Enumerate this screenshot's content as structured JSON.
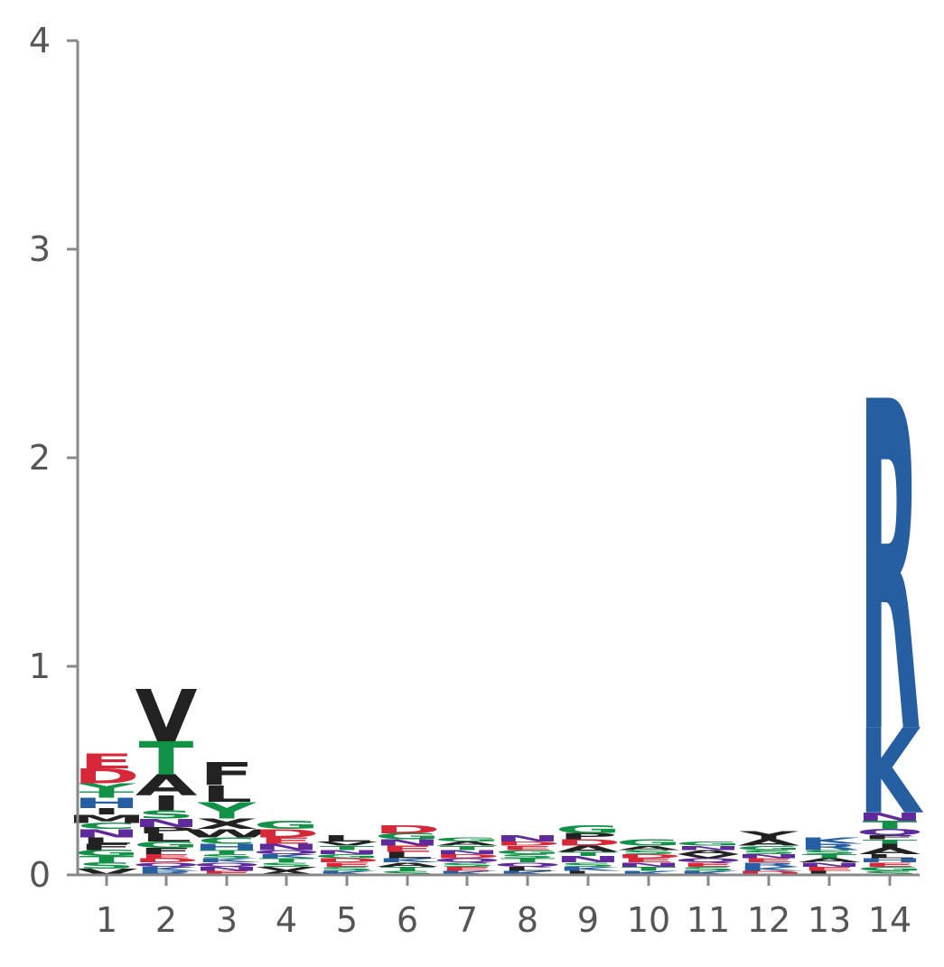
{
  "chart_data": {
    "type": "sequence-logo",
    "title": "",
    "xlabel": "",
    "ylabel": "",
    "ylim": [
      0,
      4
    ],
    "y_ticks": [
      "0",
      "1",
      "2",
      "3",
      "4"
    ],
    "positions": [
      "1",
      "2",
      "3",
      "4",
      "5",
      "6",
      "7",
      "8",
      "9",
      "10",
      "11",
      "12",
      "13",
      "14"
    ],
    "colors": {
      "acidic": "#d62839",
      "polar": "#119247",
      "basic": "#255ea1",
      "hydrophobic": "#222222",
      "amide": "#5e2a9c"
    },
    "stacks": [
      {
        "position": "1",
        "letters": [
          {
            "letter": "V",
            "height": 0.03,
            "color": "#222222"
          },
          {
            "letter": "S",
            "height": 0.03,
            "color": "#119247"
          },
          {
            "letter": "T",
            "height": 0.03,
            "color": "#119247"
          },
          {
            "letter": "G",
            "height": 0.03,
            "color": "#119247"
          },
          {
            "letter": "F",
            "height": 0.03,
            "color": "#222222"
          },
          {
            "letter": "L",
            "height": 0.03,
            "color": "#222222"
          },
          {
            "letter": "N",
            "height": 0.04,
            "color": "#5e2a9c"
          },
          {
            "letter": "C",
            "height": 0.03,
            "color": "#119247"
          },
          {
            "letter": "M",
            "height": 0.04,
            "color": "#222222"
          },
          {
            "letter": "I",
            "height": 0.03,
            "color": "#222222"
          },
          {
            "letter": "H",
            "height": 0.05,
            "color": "#255ea1"
          },
          {
            "letter": "T",
            "height": 0.03,
            "color": "#119247"
          },
          {
            "letter": "Y",
            "height": 0.04,
            "color": "#119247"
          },
          {
            "letter": "D",
            "height": 0.07,
            "color": "#d62839"
          },
          {
            "letter": "E",
            "height": 0.07,
            "color": "#d62839"
          }
        ]
      },
      {
        "position": "2",
        "letters": [
          {
            "letter": "R",
            "height": 0.02,
            "color": "#255ea1"
          },
          {
            "letter": "K",
            "height": 0.02,
            "color": "#255ea1"
          },
          {
            "letter": "Q",
            "height": 0.02,
            "color": "#5e2a9c"
          },
          {
            "letter": "D",
            "height": 0.02,
            "color": "#d62839"
          },
          {
            "letter": "E",
            "height": 0.02,
            "color": "#d62839"
          },
          {
            "letter": "F",
            "height": 0.03,
            "color": "#222222"
          },
          {
            "letter": "G",
            "height": 0.03,
            "color": "#119247"
          },
          {
            "letter": "L",
            "height": 0.04,
            "color": "#222222"
          },
          {
            "letter": "P",
            "height": 0.03,
            "color": "#222222"
          },
          {
            "letter": "N",
            "height": 0.04,
            "color": "#5e2a9c"
          },
          {
            "letter": "S",
            "height": 0.04,
            "color": "#119247"
          },
          {
            "letter": "I",
            "height": 0.07,
            "color": "#222222"
          },
          {
            "letter": "A",
            "height": 0.1,
            "color": "#222222"
          },
          {
            "letter": "T",
            "height": 0.16,
            "color": "#119247"
          },
          {
            "letter": "V",
            "height": 0.25,
            "color": "#222222"
          }
        ]
      },
      {
        "position": "3",
        "letters": [
          {
            "letter": "E",
            "height": 0.02,
            "color": "#d62839"
          },
          {
            "letter": "N",
            "height": 0.02,
            "color": "#5e2a9c"
          },
          {
            "letter": "Q",
            "height": 0.02,
            "color": "#5e2a9c"
          },
          {
            "letter": "K",
            "height": 0.02,
            "color": "#255ea1"
          },
          {
            "letter": "S",
            "height": 0.02,
            "color": "#119247"
          },
          {
            "letter": "T",
            "height": 0.02,
            "color": "#119247"
          },
          {
            "letter": "H",
            "height": 0.03,
            "color": "#255ea1"
          },
          {
            "letter": "C",
            "height": 0.03,
            "color": "#119247"
          },
          {
            "letter": "W",
            "height": 0.04,
            "color": "#222222"
          },
          {
            "letter": "X",
            "height": 0.05,
            "color": "#222222"
          },
          {
            "letter": "Y",
            "height": 0.08,
            "color": "#119247"
          },
          {
            "letter": "L",
            "height": 0.08,
            "color": "#222222"
          },
          {
            "letter": "F",
            "height": 0.11,
            "color": "#222222"
          }
        ]
      },
      {
        "position": "4",
        "letters": [
          {
            "letter": "A",
            "height": 0.02,
            "color": "#222222"
          },
          {
            "letter": "V",
            "height": 0.02,
            "color": "#222222"
          },
          {
            "letter": "S",
            "height": 0.02,
            "color": "#119247"
          },
          {
            "letter": "T",
            "height": 0.02,
            "color": "#119247"
          },
          {
            "letter": "K",
            "height": 0.02,
            "color": "#255ea1"
          },
          {
            "letter": "Q",
            "height": 0.02,
            "color": "#5e2a9c"
          },
          {
            "letter": "N",
            "height": 0.03,
            "color": "#5e2a9c"
          },
          {
            "letter": "E",
            "height": 0.03,
            "color": "#d62839"
          },
          {
            "letter": "D",
            "height": 0.04,
            "color": "#d62839"
          },
          {
            "letter": "G",
            "height": 0.04,
            "color": "#119247"
          }
        ]
      },
      {
        "position": "5",
        "letters": [
          {
            "letter": "K",
            "height": 0.02,
            "color": "#255ea1"
          },
          {
            "letter": "S",
            "height": 0.02,
            "color": "#119247"
          },
          {
            "letter": "E",
            "height": 0.02,
            "color": "#d62839"
          },
          {
            "letter": "D",
            "height": 0.02,
            "color": "#d62839"
          },
          {
            "letter": "G",
            "height": 0.02,
            "color": "#119247"
          },
          {
            "letter": "N",
            "height": 0.02,
            "color": "#5e2a9c"
          },
          {
            "letter": "T",
            "height": 0.02,
            "color": "#119247"
          },
          {
            "letter": "V",
            "height": 0.02,
            "color": "#222222"
          },
          {
            "letter": "L",
            "height": 0.03,
            "color": "#222222"
          }
        ]
      },
      {
        "position": "6",
        "letters": [
          {
            "letter": "S",
            "height": 0.02,
            "color": "#119247"
          },
          {
            "letter": "T",
            "height": 0.02,
            "color": "#119247"
          },
          {
            "letter": "A",
            "height": 0.02,
            "color": "#222222"
          },
          {
            "letter": "K",
            "height": 0.02,
            "color": "#255ea1"
          },
          {
            "letter": "L",
            "height": 0.03,
            "color": "#222222"
          },
          {
            "letter": "E",
            "height": 0.03,
            "color": "#d62839"
          },
          {
            "letter": "N",
            "height": 0.03,
            "color": "#5e2a9c"
          },
          {
            "letter": "G",
            "height": 0.03,
            "color": "#119247"
          },
          {
            "letter": "D",
            "height": 0.04,
            "color": "#d62839"
          }
        ]
      },
      {
        "position": "7",
        "letters": [
          {
            "letter": "K",
            "height": 0.02,
            "color": "#255ea1"
          },
          {
            "letter": "E",
            "height": 0.02,
            "color": "#d62839"
          },
          {
            "letter": "S",
            "height": 0.02,
            "color": "#119247"
          },
          {
            "letter": "Q",
            "height": 0.02,
            "color": "#5e2a9c"
          },
          {
            "letter": "D",
            "height": 0.02,
            "color": "#d62839"
          },
          {
            "letter": "N",
            "height": 0.02,
            "color": "#5e2a9c"
          },
          {
            "letter": "T",
            "height": 0.02,
            "color": "#119247"
          },
          {
            "letter": "A",
            "height": 0.02,
            "color": "#222222"
          },
          {
            "letter": "G",
            "height": 0.02,
            "color": "#119247"
          }
        ]
      },
      {
        "position": "8",
        "letters": [
          {
            "letter": "K",
            "height": 0.02,
            "color": "#255ea1"
          },
          {
            "letter": "L",
            "height": 0.02,
            "color": "#222222"
          },
          {
            "letter": "Q",
            "height": 0.02,
            "color": "#5e2a9c"
          },
          {
            "letter": "T",
            "height": 0.02,
            "color": "#119247"
          },
          {
            "letter": "S",
            "height": 0.02,
            "color": "#119247"
          },
          {
            "letter": "G",
            "height": 0.02,
            "color": "#119247"
          },
          {
            "letter": "E",
            "height": 0.02,
            "color": "#d62839"
          },
          {
            "letter": "D",
            "height": 0.02,
            "color": "#d62839"
          },
          {
            "letter": "N",
            "height": 0.03,
            "color": "#5e2a9c"
          }
        ]
      },
      {
        "position": "9",
        "letters": [
          {
            "letter": "L",
            "height": 0.02,
            "color": "#222222"
          },
          {
            "letter": "K",
            "height": 0.02,
            "color": "#255ea1"
          },
          {
            "letter": "S",
            "height": 0.02,
            "color": "#119247"
          },
          {
            "letter": "N",
            "height": 0.03,
            "color": "#5e2a9c"
          },
          {
            "letter": "T",
            "height": 0.02,
            "color": "#119247"
          },
          {
            "letter": "A",
            "height": 0.03,
            "color": "#222222"
          },
          {
            "letter": "D",
            "height": 0.03,
            "color": "#d62839"
          },
          {
            "letter": "P",
            "height": 0.03,
            "color": "#222222"
          },
          {
            "letter": "G",
            "height": 0.04,
            "color": "#119247"
          }
        ]
      },
      {
        "position": "10",
        "letters": [
          {
            "letter": "K",
            "height": 0.02,
            "color": "#255ea1"
          },
          {
            "letter": "T",
            "height": 0.02,
            "color": "#119247"
          },
          {
            "letter": "N",
            "height": 0.02,
            "color": "#5e2a9c"
          },
          {
            "letter": "E",
            "height": 0.02,
            "color": "#d62839"
          },
          {
            "letter": "D",
            "height": 0.02,
            "color": "#d62839"
          },
          {
            "letter": "S",
            "height": 0.02,
            "color": "#119247"
          },
          {
            "letter": "A",
            "height": 0.02,
            "color": "#222222"
          },
          {
            "letter": "G",
            "height": 0.03,
            "color": "#119247"
          }
        ]
      },
      {
        "position": "11",
        "letters": [
          {
            "letter": "K",
            "height": 0.02,
            "color": "#255ea1"
          },
          {
            "letter": "S",
            "height": 0.02,
            "color": "#119247"
          },
          {
            "letter": "E",
            "height": 0.02,
            "color": "#d62839"
          },
          {
            "letter": "Q",
            "height": 0.02,
            "color": "#5e2a9c"
          },
          {
            "letter": "V",
            "height": 0.02,
            "color": "#222222"
          },
          {
            "letter": "A",
            "height": 0.02,
            "color": "#222222"
          },
          {
            "letter": "N",
            "height": 0.02,
            "color": "#5e2a9c"
          },
          {
            "letter": "G",
            "height": 0.02,
            "color": "#119247"
          }
        ]
      },
      {
        "position": "12",
        "letters": [
          {
            "letter": "D",
            "height": 0.02,
            "color": "#d62839"
          },
          {
            "letter": "K",
            "height": 0.02,
            "color": "#255ea1"
          },
          {
            "letter": "R",
            "height": 0.02,
            "color": "#255ea1"
          },
          {
            "letter": "E",
            "height": 0.02,
            "color": "#d62839"
          },
          {
            "letter": "N",
            "height": 0.02,
            "color": "#5e2a9c"
          },
          {
            "letter": "S",
            "height": 0.02,
            "color": "#119247"
          },
          {
            "letter": "G",
            "height": 0.02,
            "color": "#119247"
          },
          {
            "letter": "A",
            "height": 0.03,
            "color": "#222222"
          },
          {
            "letter": "Y",
            "height": 0.04,
            "color": "#222222"
          }
        ]
      },
      {
        "position": "13",
        "letters": [
          {
            "letter": "L",
            "height": 0.02,
            "color": "#222222"
          },
          {
            "letter": "E",
            "height": 0.02,
            "color": "#d62839"
          },
          {
            "letter": "N",
            "height": 0.02,
            "color": "#5e2a9c"
          },
          {
            "letter": "A",
            "height": 0.02,
            "color": "#222222"
          },
          {
            "letter": "T",
            "height": 0.02,
            "color": "#119247"
          },
          {
            "letter": "S",
            "height": 0.02,
            "color": "#119247"
          },
          {
            "letter": "R",
            "height": 0.03,
            "color": "#255ea1"
          },
          {
            "letter": "K",
            "height": 0.03,
            "color": "#255ea1"
          }
        ]
      },
      {
        "position": "14",
        "letters": [
          {
            "letter": "S",
            "height": 0.02,
            "color": "#119247"
          },
          {
            "letter": "G",
            "height": 0.02,
            "color": "#119247"
          },
          {
            "letter": "E",
            "height": 0.02,
            "color": "#d62839"
          },
          {
            "letter": "H",
            "height": 0.02,
            "color": "#255ea1"
          },
          {
            "letter": "L",
            "height": 0.02,
            "color": "#222222"
          },
          {
            "letter": "A",
            "height": 0.03,
            "color": "#222222"
          },
          {
            "letter": "I",
            "height": 0.02,
            "color": "#222222"
          },
          {
            "letter": "T",
            "height": 0.02,
            "color": "#119247"
          },
          {
            "letter": "F",
            "height": 0.02,
            "color": "#222222"
          },
          {
            "letter": "Q",
            "height": 0.03,
            "color": "#5e2a9c"
          },
          {
            "letter": "T",
            "height": 0.04,
            "color": "#119247"
          },
          {
            "letter": "N",
            "height": 0.04,
            "color": "#5e2a9c"
          },
          {
            "letter": "K",
            "height": 0.41,
            "color": "#255ea1"
          },
          {
            "letter": "R",
            "height": 1.58,
            "color": "#255ea1"
          }
        ]
      }
    ]
  }
}
